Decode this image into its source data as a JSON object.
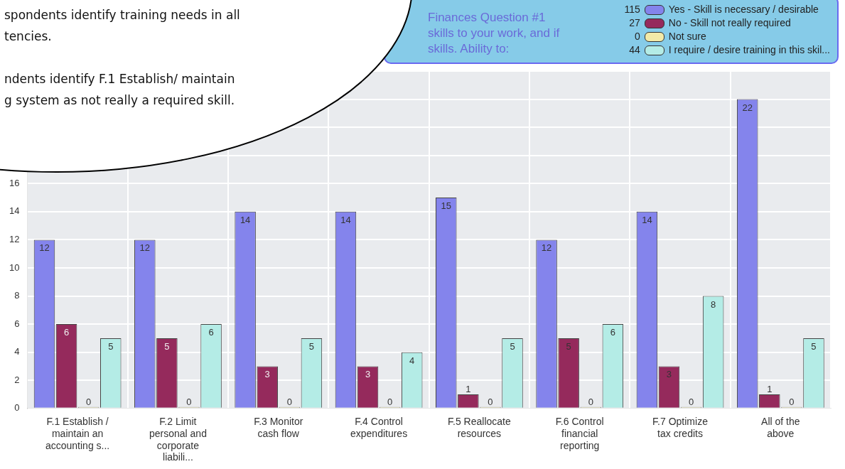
{
  "chart_data": {
    "type": "bar",
    "title": "Finances Question #1\nskills to your work, and if\nskills. Ability to:",
    "annotations": [
      "spondents identify training needs in all\ntencies.\n\nndents identify F.1 Establish/ maintain\ng system as not really a required skill.",
      "115",
      "27",
      "0",
      "44"
    ],
    "categories": [
      "F.1 Establish / maintain an accounting s...",
      "F.2 Limit personal and corporate liabili...",
      "F.3 Monitor cash flow",
      "F.4 Control expenditures",
      "F.5 Reallocate resources",
      "F.6 Control financial reporting",
      "F.7 Optimize tax credits",
      "All of the above"
    ],
    "series": [
      {
        "name": "Yes - Skill is necessary / desirable",
        "color": "#8484ec",
        "values": [
          12,
          12,
          14,
          14,
          15,
          12,
          14,
          22
        ]
      },
      {
        "name": "No - Skill not really required",
        "color": "#952a5c",
        "values": [
          6,
          5,
          3,
          3,
          1,
          5,
          3,
          1
        ]
      },
      {
        "name": "Not sure",
        "color": "#f2eaa8",
        "values": [
          0,
          0,
          0,
          0,
          0,
          0,
          0,
          0
        ]
      },
      {
        "name": "I require / desire training in this skil...",
        "color": "#b4ece6",
        "values": [
          5,
          6,
          5,
          4,
          5,
          6,
          8,
          5
        ]
      }
    ],
    "ylim": [
      0,
      24
    ],
    "yticks": [
      0,
      2,
      4,
      6,
      8,
      10,
      12,
      14,
      16,
      {
        "value": 18,
        "label": null
      },
      {
        "value": 20,
        "label": null
      },
      {
        "value": 22,
        "label": null
      },
      {
        "value": 24,
        "label": null
      }
    ],
    "grid": true,
    "legend": "top right",
    "data_labels": true
  }
}
